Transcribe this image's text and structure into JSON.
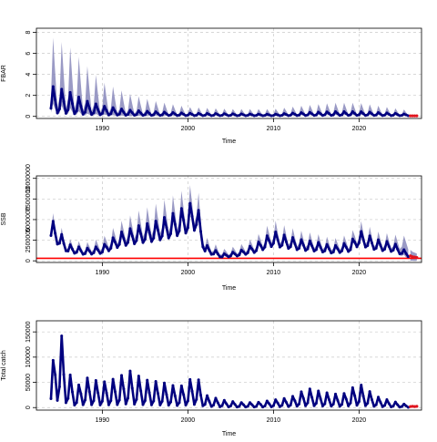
{
  "chart_data": [
    {
      "type": "line",
      "xlabel": "Time",
      "ylabel": "FBAR",
      "xlim": [
        1982.3,
        2027.3
      ],
      "ylim": [
        -0.2,
        8.4
      ],
      "x_ticks": [
        "1990",
        "2000",
        "2010",
        "2020"
      ],
      "x_tick_values": [
        1990,
        2000,
        2010,
        2020
      ],
      "y_ticks": [
        "0",
        "2",
        "4",
        "6",
        "8"
      ],
      "y_tick_values": [
        0,
        2,
        4,
        6,
        8
      ],
      "grid": true,
      "seasonal": {
        "start": 1984.0,
        "end": 2025.75,
        "step": 0.25,
        "median_peak_at_year": [
          [
            1984,
            2.9
          ],
          [
            1986,
            2.4
          ],
          [
            1988,
            1.5
          ],
          [
            1990,
            1.0
          ],
          [
            1993,
            0.6
          ],
          [
            1996,
            0.45
          ],
          [
            2000,
            0.3
          ],
          [
            2005,
            0.25
          ],
          [
            2010,
            0.2
          ],
          [
            2013,
            0.35
          ],
          [
            2017,
            0.45
          ],
          [
            2020,
            0.45
          ],
          [
            2024,
            0.3
          ],
          [
            2025.75,
            0.2
          ]
        ],
        "band_peak_at_year": [
          [
            1984,
            7.6
          ],
          [
            1986,
            6.8
          ],
          [
            1988,
            5.0
          ],
          [
            1990,
            3.3
          ],
          [
            1993,
            2.2
          ],
          [
            1996,
            1.5
          ],
          [
            2000,
            0.9
          ],
          [
            2005,
            0.7
          ],
          [
            2010,
            0.7
          ],
          [
            2013,
            1.0
          ],
          [
            2017,
            1.3
          ],
          [
            2020,
            1.3
          ],
          [
            2024,
            0.8
          ],
          [
            2025.75,
            0.6
          ]
        ],
        "trough": 0.05
      },
      "projection": {
        "x": [
          2026.0,
          2026.25,
          2026.5,
          2026.75
        ],
        "y": [
          0.05,
          0.05,
          0.05,
          0.05
        ]
      },
      "colors": {
        "median": "#00007f",
        "band": "#8888bb",
        "projection": "#e0141e",
        "grid": "#c8c8c8"
      }
    },
    {
      "type": "line",
      "xlabel": "Time",
      "ylabel": "SSB",
      "xlim": [
        1982.3,
        2027.3
      ],
      "ylim": [
        -200000,
        10300000
      ],
      "x_ticks": [
        "1990",
        "2000",
        "2010",
        "2020"
      ],
      "x_tick_values": [
        1990,
        2000,
        2010,
        2020
      ],
      "y_ticks": [
        "0",
        "2500000",
        "5000000",
        "7500000",
        "10000000"
      ],
      "y_tick_values": [
        0,
        2500000,
        5000000,
        7500000,
        10000000
      ],
      "grid": true,
      "reference_line": 300000,
      "seasonal": {
        "start": 1984.0,
        "end": 2025.75,
        "step": 0.25,
        "median_peak_at_year": [
          [
            1984,
            5200000
          ],
          [
            1986,
            2000000
          ],
          [
            1988,
            1500000
          ],
          [
            1990,
            1800000
          ],
          [
            1992,
            3400000
          ],
          [
            1994,
            4200000
          ],
          [
            1996,
            4700000
          ],
          [
            1998,
            5600000
          ],
          [
            2000,
            6800000
          ],
          [
            2001,
            7500000
          ],
          [
            2002,
            2000000
          ],
          [
            2004,
            800000
          ],
          [
            2006,
            1200000
          ],
          [
            2008,
            2100000
          ],
          [
            2010,
            3600000
          ],
          [
            2011,
            3200000
          ],
          [
            2013,
            2600000
          ],
          [
            2015,
            2300000
          ],
          [
            2017,
            1800000
          ],
          [
            2019,
            2300000
          ],
          [
            2020,
            3700000
          ],
          [
            2022,
            2600000
          ],
          [
            2024,
            2200000
          ],
          [
            2025.75,
            1000000
          ]
        ],
        "band_peak_at_year": [
          [
            1984,
            6200000
          ],
          [
            1986,
            2700000
          ],
          [
            1988,
            2200000
          ],
          [
            1990,
            2800000
          ],
          [
            1992,
            4700000
          ],
          [
            1994,
            6000000
          ],
          [
            1996,
            6800000
          ],
          [
            1998,
            7800000
          ],
          [
            2000,
            8900000
          ],
          [
            2001,
            10000000
          ],
          [
            2002,
            3000000
          ],
          [
            2004,
            1400000
          ],
          [
            2006,
            1900000
          ],
          [
            2008,
            3000000
          ],
          [
            2010,
            5000000
          ],
          [
            2011,
            4400000
          ],
          [
            2013,
            3700000
          ],
          [
            2015,
            3300000
          ],
          [
            2017,
            2700000
          ],
          [
            2019,
            3300000
          ],
          [
            2020,
            5000000
          ],
          [
            2022,
            3600000
          ],
          [
            2024,
            3200000
          ],
          [
            2025.75,
            3000000
          ]
        ],
        "trough_fraction": 0.45
      },
      "projection": {
        "x": [
          2026.0,
          2026.25,
          2026.5,
          2026.75
        ],
        "y": [
          600000,
          500000,
          450000,
          400000
        ]
      },
      "colors": {
        "median": "#00007f",
        "band": "#8888bb",
        "projection": "#e0141e",
        "grid": "#c8c8c8"
      }
    },
    {
      "type": "line",
      "xlabel": "Time",
      "ylabel": "Total catch",
      "xlim": [
        1982.3,
        2027.3
      ],
      "ylim": [
        -5000,
        172000
      ],
      "x_ticks": [
        "1990",
        "2000",
        "2010",
        "2020"
      ],
      "x_tick_values": [
        1990,
        2000,
        2010,
        2020
      ],
      "y_ticks": [
        "0",
        "50000",
        "100000",
        "150000"
      ],
      "y_tick_values": [
        0,
        50000,
        100000,
        150000
      ],
      "grid": true,
      "seasonal": {
        "start": 1984.0,
        "end": 2025.75,
        "step": 0.25,
        "median_peak_at_year": [
          [
            1984,
            70000
          ],
          [
            1985,
            165000
          ],
          [
            1986,
            73000
          ],
          [
            1987,
            40000
          ],
          [
            1988,
            60000
          ],
          [
            1990,
            50000
          ],
          [
            1992,
            60000
          ],
          [
            1993,
            75000
          ],
          [
            1995,
            55000
          ],
          [
            1997,
            50000
          ],
          [
            1999,
            40000
          ],
          [
            2001,
            65000
          ],
          [
            2002,
            25000
          ],
          [
            2004,
            15000
          ],
          [
            2006,
            10000
          ],
          [
            2008,
            10000
          ],
          [
            2010,
            15000
          ],
          [
            2012,
            20000
          ],
          [
            2014,
            38000
          ],
          [
            2016,
            30000
          ],
          [
            2018,
            25000
          ],
          [
            2020,
            48000
          ],
          [
            2022,
            22000
          ],
          [
            2024,
            12000
          ],
          [
            2025.75,
            5000
          ]
        ],
        "trough": 0.12
      },
      "projection": {
        "x": [
          2026.0,
          2026.25,
          2026.5,
          2026.75
        ],
        "y": [
          2000,
          2500,
          2000,
          2500
        ]
      },
      "colors": {
        "median": "#00007f",
        "projection": "#e0141e",
        "grid": "#c8c8c8"
      }
    }
  ]
}
